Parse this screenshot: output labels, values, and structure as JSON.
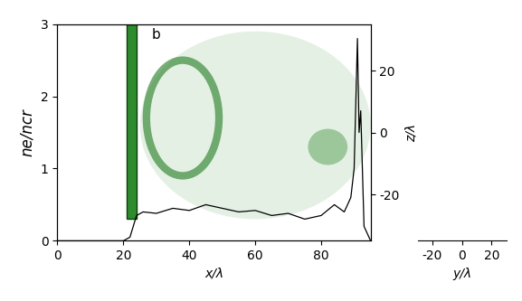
{
  "chart_data": {
    "type": "line",
    "annotations": [
      "b"
    ],
    "xlabel": "x/λ",
    "ylabel": "ne/ncr",
    "y2label": "z/λ",
    "depth_label": "y/λ",
    "x": [
      0,
      5,
      10,
      15,
      20,
      22,
      24,
      26,
      30,
      35,
      40,
      45,
      50,
      55,
      60,
      65,
      70,
      75,
      80,
      84,
      87,
      89,
      90,
      91,
      91.5,
      92,
      93,
      95
    ],
    "values": [
      0,
      0,
      0,
      0,
      0,
      0.05,
      0.35,
      0.4,
      0.38,
      0.45,
      0.42,
      0.5,
      0.45,
      0.4,
      0.42,
      0.35,
      0.38,
      0.3,
      0.35,
      0.5,
      0.4,
      0.6,
      1.0,
      2.8,
      1.5,
      1.8,
      0.2,
      0
    ],
    "color": "#000000",
    "xlim": [
      0,
      95
    ],
    "xticks": [
      0,
      20,
      40,
      60,
      80
    ],
    "ylim": [
      0,
      3
    ],
    "yticks": [
      0,
      1,
      2,
      3
    ],
    "y2lim": [
      -35,
      35
    ],
    "y2ticks": [
      -20,
      0,
      20
    ],
    "depth_lim": [
      -30,
      30
    ],
    "depth_ticks": [
      -20,
      0,
      20
    ]
  }
}
